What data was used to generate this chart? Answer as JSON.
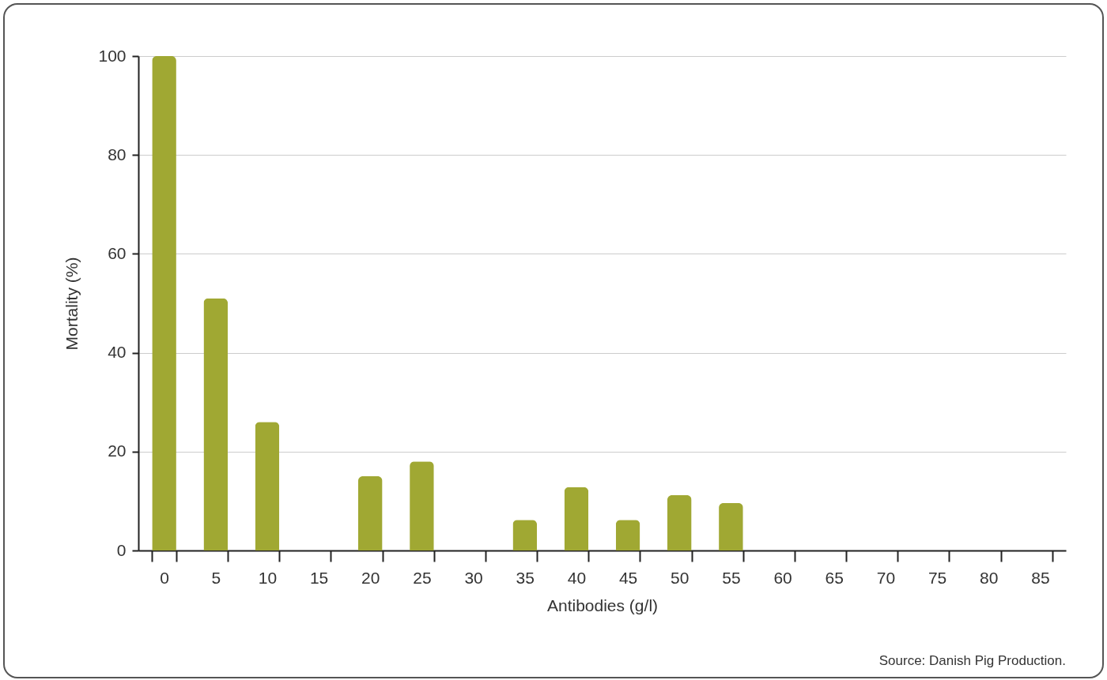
{
  "chart_data": {
    "type": "bar",
    "xlabel": "Antibodies (g/l)",
    "ylabel": "Mortality (%)",
    "categories": [
      "0",
      "5",
      "10",
      "15",
      "20",
      "25",
      "30",
      "35",
      "40",
      "45",
      "50",
      "55",
      "60",
      "65",
      "70",
      "75",
      "80",
      "85"
    ],
    "values": [
      100,
      51,
      26,
      0,
      15,
      18,
      0,
      6.2,
      12.8,
      6.2,
      11.2,
      9.6,
      0,
      0,
      0,
      0,
      0,
      0
    ],
    "color": "#a0a833",
    "ylim": [
      0,
      100
    ],
    "yticks": [
      0,
      20,
      40,
      60,
      80,
      100
    ],
    "grid": "y",
    "legend": false,
    "annotations": [
      "Source: Danish Pig Production."
    ]
  }
}
